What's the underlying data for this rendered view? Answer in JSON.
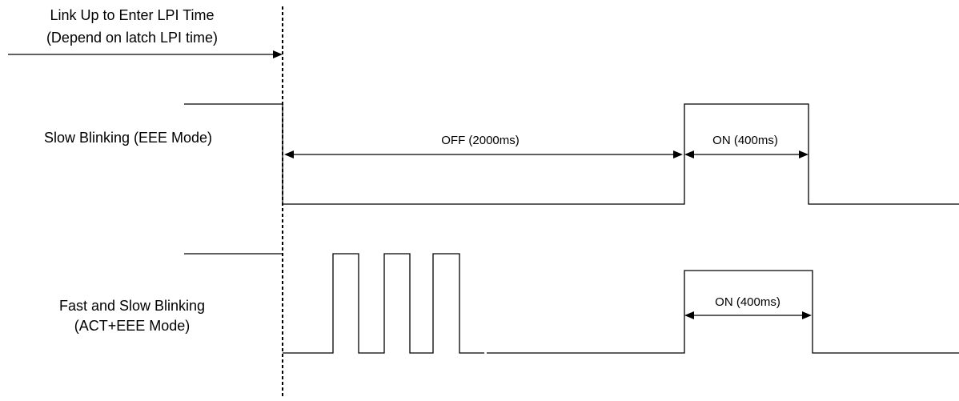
{
  "header": {
    "line1": "Link Up to Enter LPI Time",
    "line2": "(Depend on latch LPI time)"
  },
  "slow_row": {
    "label": "Slow Blinking (EEE Mode)",
    "off_label": "OFF (2000ms)",
    "on_label": "ON (400ms)"
  },
  "fast_row": {
    "label_line1": "Fast and Slow Blinking",
    "label_line2": "(ACT+EEE Mode)",
    "on_label": "ON (400ms)"
  },
  "colors": {
    "line": "#000000",
    "background": "#ffffff"
  }
}
